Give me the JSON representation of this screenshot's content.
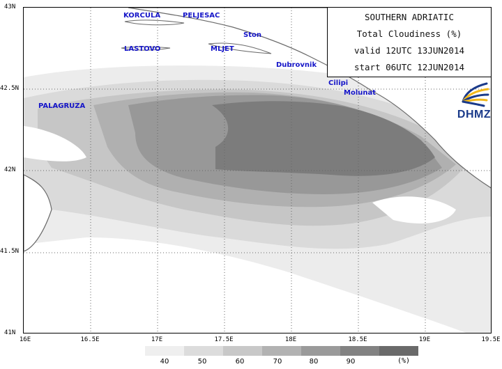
{
  "map": {
    "lat_ticks": [
      "43N",
      "42.5N",
      "42N",
      "41.5N",
      "41N"
    ],
    "lon_ticks": [
      "16E",
      "16.5E",
      "17E",
      "17.5E",
      "18E",
      "18.5E",
      "19E",
      "19.5E"
    ],
    "places": {
      "korcula": "KORCULA",
      "peljesac": "PELJESAC",
      "ston": "Ston",
      "lastovo": "LASTOVO",
      "mljet": "MLJET",
      "dubrovnik": "Dubrovnik",
      "cilipi": "Cilipi",
      "molunat": "Molunat",
      "palagruza": "PALAGRUZA"
    },
    "place_color": "#1515c8",
    "gridlines": "dotted"
  },
  "title_box": {
    "line1": "SOUTHERN ADRIATIC",
    "line2": "Total Cloudiness (%)",
    "line3": "valid 12UTC 13JUN2014",
    "line4": "start 06UTC 12JUN2014"
  },
  "logo": {
    "text": "DHMZ",
    "icon": "dhmz-swirl-logo"
  },
  "legend": {
    "values": [
      "40",
      "50",
      "60",
      "70",
      "80",
      "90"
    ],
    "unit": "(%)",
    "colors": [
      "#efefef",
      "#dcdcdc",
      "#c8c8c8",
      "#b2b2b2",
      "#9a9a9a",
      "#828282",
      "#6a6a6a"
    ]
  }
}
